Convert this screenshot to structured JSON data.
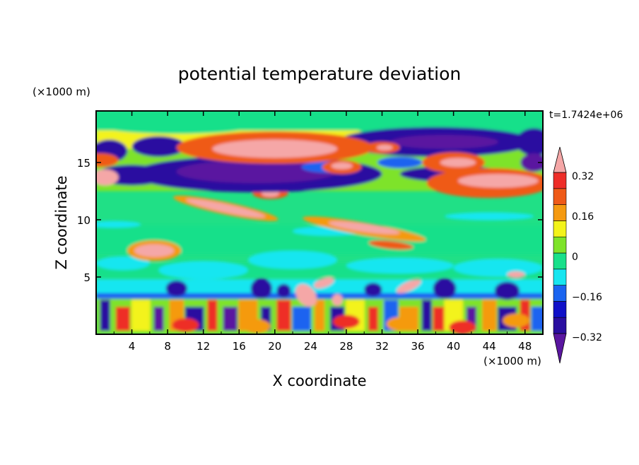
{
  "chart_data": {
    "type": "heatmap",
    "title": "potential temperature deviation",
    "xlabel": "X coordinate",
    "ylabel": "Z coordinate",
    "x_unit": "(×1000 m)",
    "y_unit": "(×1000 m)",
    "time_label": "t=1.7424e+06",
    "xlim": [
      0,
      50
    ],
    "ylim": [
      0,
      19.5
    ],
    "x_ticks": [
      4,
      8,
      12,
      16,
      20,
      24,
      28,
      32,
      36,
      40,
      44,
      48
    ],
    "y_ticks": [
      5,
      10,
      15
    ],
    "colorbar": {
      "tick_labels": [
        "0.32",
        "0.16",
        "0",
        "−0.16",
        "−0.32"
      ],
      "tick_values": [
        0.32,
        0.16,
        0,
        -0.16,
        -0.32
      ],
      "levels": [
        -0.4,
        -0.32,
        -0.24,
        -0.16,
        -0.08,
        0,
        0.08,
        0.16,
        0.24,
        0.32,
        0.4
      ],
      "colors": [
        "#5a16a0",
        "#2a0ea0",
        "#1010c8",
        "#1a64f0",
        "#18e6f0",
        "#18e08a",
        "#7ee32a",
        "#f3f31b",
        "#f59a10",
        "#ef5a18",
        "#ee2d28",
        "#f5a7a7"
      ],
      "extend": "both"
    },
    "grid": false,
    "colors": {
      "background": "#20e086",
      "lower_bg": "#16d8ea"
    }
  }
}
